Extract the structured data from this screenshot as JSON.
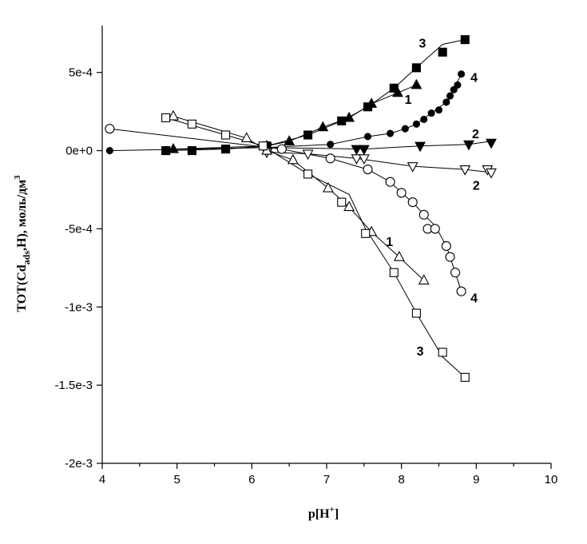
{
  "chart_data": {
    "type": "scatter",
    "title": "",
    "xlabel": "p[H",
    "xlabel_sup": "+",
    "xlabel_tail": "]",
    "ylabel_main": "TOT(Cd",
    "ylabel_sub": "ads",
    "ylabel_tail": ",H), моль/дм",
    "ylabel_sup": "3",
    "xlim": [
      4,
      10
    ],
    "ylim": [
      -0.002,
      0.0008
    ],
    "x_ticks": [
      4,
      5,
      6,
      7,
      8,
      9,
      10
    ],
    "x_tick_labels": [
      "4",
      "5",
      "6",
      "7",
      "8",
      "9",
      "10"
    ],
    "y_ticks": [
      0.0005,
      0,
      -0.0005,
      -0.001,
      -0.0015,
      -0.002
    ],
    "y_tick_labels": [
      "5e-4",
      "0e+0",
      "-5e-4",
      "-1e-3",
      "-1.5e-3",
      "-2e-3"
    ],
    "grid": false,
    "series": [
      {
        "name": "1",
        "group": "adsorbed",
        "marker": "triangle-up",
        "filled": true,
        "x": [
          4.95,
          6.2,
          6.5,
          6.95,
          7.3,
          7.6,
          7.95,
          8.2
        ],
        "y": [
          1e-05,
          3e-05,
          6e-05,
          0.00015,
          0.00021,
          0.0003,
          0.00037,
          0.00042
        ],
        "line_x": [
          4.95,
          6.2,
          6.5,
          6.95,
          7.3,
          7.6,
          7.95,
          8.2
        ],
        "line_y": [
          1e-05,
          3e-05,
          6e-05,
          0.00015,
          0.00021,
          0.0003,
          0.00037,
          0.00042
        ]
      },
      {
        "name": "3",
        "group": "adsorbed",
        "marker": "square",
        "filled": true,
        "x": [
          4.85,
          5.2,
          5.65,
          6.2,
          6.75,
          7.2,
          7.55,
          7.9,
          8.2,
          8.55,
          8.85
        ],
        "y": [
          0,
          0,
          1e-05,
          3e-05,
          0.0001,
          0.00019,
          0.00028,
          0.0004,
          0.00053,
          0.00063,
          0.00071
        ],
        "line_x": [
          4.85,
          5.65,
          6.2,
          6.75,
          7.2,
          7.55,
          7.9,
          8.2,
          8.55,
          8.85
        ],
        "line_y": [
          0,
          1e-05,
          3e-05,
          0.0001,
          0.00019,
          0.00028,
          0.0004,
          0.00053,
          0.00068,
          0.00071
        ]
      },
      {
        "name": "4",
        "group": "adsorbed",
        "marker": "circle",
        "filled": true,
        "x": [
          4.1,
          6.2,
          7.05,
          7.55,
          7.85,
          8.05,
          8.2,
          8.3,
          8.4,
          8.5,
          8.6,
          8.65,
          8.7,
          8.75,
          8.8
        ],
        "y": [
          0,
          2e-05,
          4e-05,
          9e-05,
          0.00011,
          0.00014,
          0.00017,
          0.0002,
          0.00024,
          0.00026,
          0.00031,
          0.00035,
          0.00039,
          0.00042,
          0.00049
        ],
        "line_x": [
          4.1,
          6.2,
          7.05,
          7.55,
          7.85,
          8.05,
          8.2,
          8.4,
          8.6,
          8.7,
          8.8
        ],
        "line_y": [
          0,
          2e-05,
          4e-05,
          9e-05,
          0.00011,
          0.00014,
          0.00017,
          0.00024,
          0.00031,
          0.00039,
          0.00049
        ]
      },
      {
        "name": "2",
        "group": "adsorbed",
        "marker": "triangle-down",
        "filled": true,
        "x": [
          6.2,
          7.4,
          7.5,
          8.25,
          8.9,
          9.2
        ],
        "y": [
          2e-05,
          1e-05,
          1e-05,
          3e-05,
          4e-05,
          5e-05
        ],
        "line_x": [
          6.2,
          7.5,
          8.25,
          8.9,
          9.2
        ],
        "line_y": [
          2e-05,
          1e-05,
          3e-05,
          4e-05,
          6e-05
        ]
      },
      {
        "name": "2",
        "group": "proton",
        "marker": "triangle-down",
        "filled": false,
        "x": [
          6.2,
          6.75,
          7.4,
          7.5,
          8.15,
          8.85,
          9.15,
          9.2
        ],
        "y": [
          -1e-05,
          -2e-05,
          -5e-05,
          -5e-05,
          -0.0001,
          -0.00012,
          -0.00012,
          -0.00014
        ],
        "line_x": [
          6.2,
          6.75,
          7.4,
          8.15,
          8.85,
          9.2
        ],
        "line_y": [
          -1e-05,
          -2e-05,
          -5e-05,
          -0.0001,
          -0.00012,
          -0.00014
        ]
      },
      {
        "name": "4",
        "group": "proton",
        "marker": "circle",
        "filled": false,
        "x": [
          4.1,
          6.4,
          7.05,
          7.55,
          7.85,
          8.0,
          8.15,
          8.3,
          8.35,
          8.45,
          8.6,
          8.65,
          8.72,
          8.8
        ],
        "y": [
          0.00014,
          1e-05,
          -5e-05,
          -0.00012,
          -0.0002,
          -0.00027,
          -0.00033,
          -0.00041,
          -0.0005,
          -0.0005,
          -0.00061,
          -0.00068,
          -0.00078,
          -0.0009
        ],
        "line_x": [
          4.1,
          6.4,
          7.05,
          7.55,
          7.85,
          8.0,
          8.15,
          8.3,
          8.45,
          8.6,
          8.72,
          8.8
        ],
        "line_y": [
          0.00014,
          1e-05,
          -5e-05,
          -0.00012,
          -0.0002,
          -0.00027,
          -0.00033,
          -0.00041,
          -0.00048,
          -0.00061,
          -0.00078,
          -0.0009
        ]
      },
      {
        "name": "1",
        "group": "proton",
        "marker": "triangle-up",
        "filled": false,
        "x": [
          4.95,
          5.93,
          6.2,
          6.55,
          7.02,
          7.3,
          7.6,
          7.97,
          8.3
        ],
        "y": [
          0.00022,
          8e-05,
          0,
          -6e-05,
          -0.00024,
          -0.00036,
          -0.00052,
          -0.00068,
          -0.00083
        ],
        "line_x": [
          4.95,
          5.93,
          6.2,
          6.55,
          7.02,
          7.3,
          7.6,
          7.97,
          8.3
        ],
        "line_y": [
          0.00022,
          8e-05,
          0,
          -6e-05,
          -0.00024,
          -0.00036,
          -0.00052,
          -0.00068,
          -0.00083
        ]
      },
      {
        "name": "3",
        "group": "proton",
        "marker": "square",
        "filled": false,
        "x": [
          4.85,
          5.2,
          5.65,
          6.15,
          6.75,
          7.2,
          7.52,
          7.9,
          8.2,
          8.55,
          8.85
        ],
        "y": [
          0.00021,
          0.00017,
          0.0001,
          3e-05,
          -0.00015,
          -0.00033,
          -0.00053,
          -0.00078,
          -0.00104,
          -0.00129,
          -0.00145
        ],
        "line_x": [
          4.85,
          5.65,
          6.15,
          6.75,
          7.3,
          7.52,
          7.9,
          8.2,
          8.55,
          8.85
        ],
        "line_y": [
          0.00021,
          0.0001,
          3e-05,
          -0.00015,
          -0.00028,
          -0.0005,
          -0.00078,
          -0.00104,
          -0.00132,
          -0.00145
        ]
      }
    ],
    "annotations": [
      {
        "text": "3",
        "x": 8.28,
        "y": 0.00069
      },
      {
        "text": "4",
        "x": 8.97,
        "y": 0.00047
      },
      {
        "text": "1",
        "x": 8.09,
        "y": 0.00033
      },
      {
        "text": "2",
        "x": 8.99,
        "y": 0.00011
      },
      {
        "text": "2",
        "x": 9.0,
        "y": -0.00022
      },
      {
        "text": "1",
        "x": 7.84,
        "y": -0.00058
      },
      {
        "text": "4",
        "x": 8.97,
        "y": -0.00094
      },
      {
        "text": "3",
        "x": 8.25,
        "y": -0.00128
      }
    ]
  }
}
